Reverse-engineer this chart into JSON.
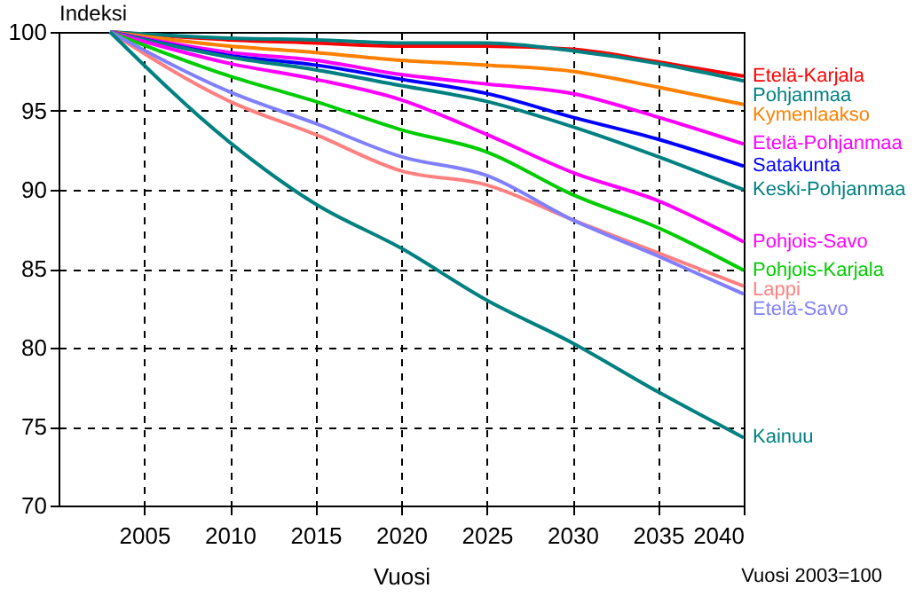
{
  "chart_data": {
    "type": "line",
    "xlabel": "Vuosi",
    "ylabel": "Indeksi",
    "annotations": [
      "Vuosi 2003=100"
    ],
    "x": [
      2003,
      2010,
      2015,
      2020,
      2025,
      2030,
      2035,
      2040
    ],
    "xlim": [
      2000,
      2040
    ],
    "xticks": [
      2005,
      2010,
      2015,
      2020,
      2025,
      2030,
      2035,
      2040
    ],
    "ylim": [
      70,
      100
    ],
    "yticks": [
      70,
      75,
      80,
      85,
      90,
      95,
      100
    ],
    "grid": true,
    "series": [
      {
        "name": "Etelä-Karjala",
        "color": "#ff0000",
        "values": [
          100,
          99.5,
          99.3,
          99.1,
          99.1,
          98.9,
          98.1,
          97.2
        ]
      },
      {
        "name": "Pohjanmaa",
        "color": "#008080",
        "values": [
          100,
          99.6,
          99.5,
          99.3,
          99.3,
          98.8,
          98.0,
          96.9
        ]
      },
      {
        "name": "Kymenlaakso",
        "color": "#ff8000",
        "values": [
          100,
          99.1,
          98.7,
          98.2,
          97.9,
          97.5,
          96.5,
          95.4
        ]
      },
      {
        "name": "Etelä-Pohjanmaa",
        "color": "#ff00ff",
        "values": [
          100,
          98.7,
          98.2,
          97.3,
          96.7,
          96.1,
          94.6,
          92.9
        ]
      },
      {
        "name": "Satakunta",
        "color": "#0000ff",
        "values": [
          100,
          98.5,
          97.9,
          97.0,
          96.1,
          94.6,
          93.2,
          91.5
        ]
      },
      {
        "name": "Keski-Pohjanmaa",
        "color": "#008080",
        "values": [
          100,
          98.4,
          97.6,
          96.6,
          95.6,
          94.0,
          92.1,
          90.0
        ]
      },
      {
        "name": "Pohjois-Savo",
        "color": "#ff00ff",
        "values": [
          100,
          98.0,
          97.0,
          95.7,
          93.5,
          91.1,
          89.3,
          86.7
        ]
      },
      {
        "name": "Pohjois-Karjala",
        "color": "#00cc00",
        "values": [
          100,
          97.2,
          95.6,
          93.8,
          92.4,
          89.7,
          87.6,
          84.9
        ]
      },
      {
        "name": "Lappi",
        "color": "#ff8080",
        "values": [
          100,
          95.6,
          93.5,
          91.2,
          90.3,
          88.1,
          86.0,
          83.9
        ]
      },
      {
        "name": "Etelä-Savo",
        "color": "#8080ff",
        "values": [
          100,
          96.2,
          94.2,
          92.1,
          90.9,
          88.1,
          85.8,
          83.4
        ]
      },
      {
        "name": "Kainuu",
        "color": "#008080",
        "values": [
          100,
          93.0,
          89.1,
          86.3,
          83.0,
          80.3,
          77.2,
          74.3
        ]
      }
    ]
  }
}
